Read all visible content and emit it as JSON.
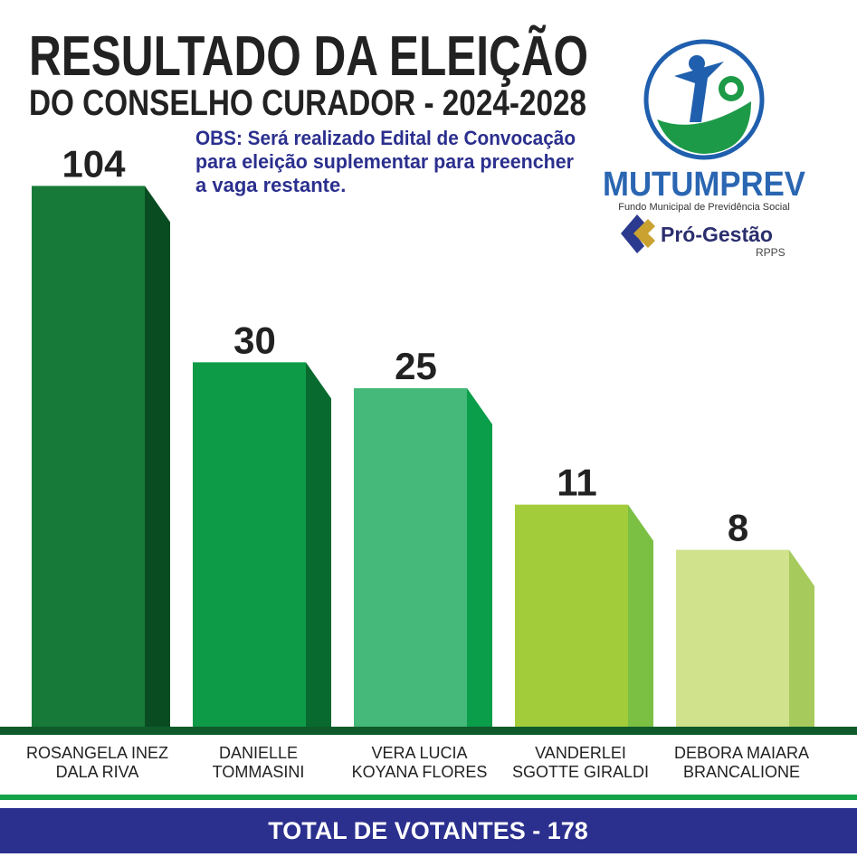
{
  "chart_data": {
    "type": "bar3d",
    "title": "RESULTADO DA ELEIÇÃO",
    "subtitle": "DO CONSELHO CURADOR - 2024-2028",
    "note": [
      "OBS: Será realizado Edital de Convocação",
      "para eleição suplementar para preencher",
      "a vaga restante."
    ],
    "categories": [
      [
        "ROSANGELA INEZ",
        "DALA RIVA"
      ],
      [
        "DANIELLE",
        "TOMMASINI"
      ],
      [
        "VERA LUCIA",
        "KOYANA FLORES"
      ],
      [
        "VANDERLEI",
        "SGOTTE GIRALDI"
      ],
      [
        "DEBORA MAIARA",
        "BRANCALIONE"
      ]
    ],
    "values": [
      104,
      30,
      25,
      11,
      8
    ],
    "colors": [
      "#187a38",
      "#0e9b48",
      "#44b97a",
      "#a3cc3b",
      "#d1e28d"
    ],
    "side_colors": [
      "#0a4c21",
      "#086a2e",
      "#0a9d4a",
      "#7bbf43",
      "#a6cb5c"
    ],
    "log_scale": true,
    "ylim": [
      2.3,
      120
    ],
    "footer": "TOTAL DE VOTANTES - 178"
  },
  "logo": {
    "name": "MUTUMPREV",
    "tagline": "Fundo Municipal de Previdência Social",
    "partner": "Pró-Gestão",
    "partner_sub": "RPPS"
  }
}
